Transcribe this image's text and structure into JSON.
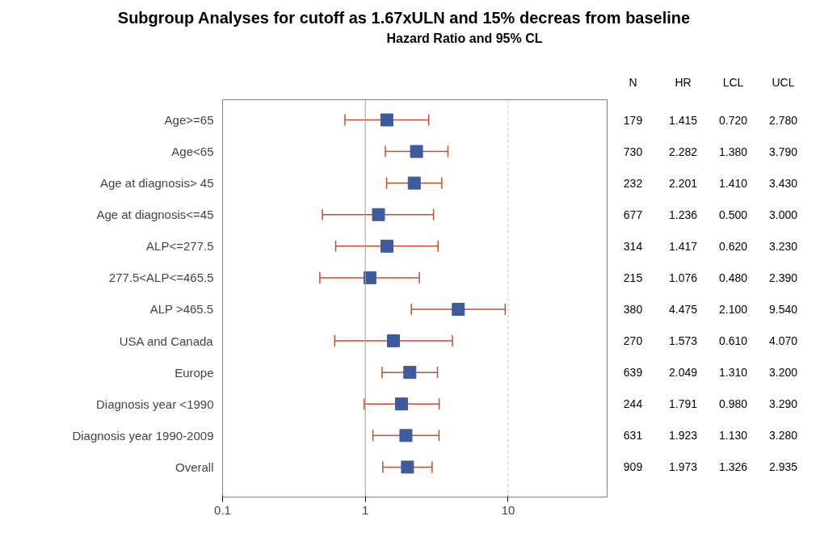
{
  "chart_data": {
    "type": "scatter",
    "title": "Subgroup Analyses for cutoff as 1.67xULN and 15% decreas from baseline",
    "subtitle": "Hazard Ratio and 95% CL",
    "orientation": "horizontal",
    "categories": [
      "Age>=65",
      "Age<65",
      "Age at diagnosis> 45",
      "Age at diagnosis<=45",
      "ALP<=277.5",
      "277.5<ALP<=465.5",
      "ALP >465.5",
      "USA and Canada",
      "Europe",
      "Diagnosis year <1990",
      "Diagnosis year 1990-2009",
      "Overall"
    ],
    "values": [
      1.415,
      2.282,
      2.201,
      1.236,
      1.417,
      1.076,
      4.475,
      1.573,
      2.049,
      1.791,
      1.923,
      1.973
    ],
    "errors": [
      [
        0.72,
        2.78
      ],
      [
        1.38,
        3.79
      ],
      [
        1.41,
        3.43
      ],
      [
        0.5,
        3.0
      ],
      [
        0.62,
        3.23
      ],
      [
        0.48,
        2.39
      ],
      [
        2.1,
        9.54
      ],
      [
        0.61,
        4.07
      ],
      [
        1.31,
        3.2
      ],
      [
        0.98,
        3.29
      ],
      [
        1.13,
        3.28
      ],
      [
        1.326,
        2.935
      ]
    ],
    "color": "#3f5a9c",
    "marker": "square",
    "log": "x",
    "xlim": [
      0.1,
      50
    ],
    "xticks": [
      0.1,
      1,
      10
    ],
    "grid": false,
    "ref_lines": [
      {
        "axis": "x",
        "value": 1,
        "color": "#a0a0a0",
        "line_style": "solid"
      },
      {
        "axis": "x",
        "value": 10,
        "color": "#c8c8c8",
        "line_style": "dashed"
      }
    ],
    "annotations": [
      "N",
      "HR",
      "LCL",
      "UCL",
      "179",
      "1.415",
      "0.720",
      "2.780",
      "730",
      "2.282",
      "1.380",
      "3.790",
      "232",
      "2.201",
      "1.410",
      "3.430",
      "677",
      "1.236",
      "0.500",
      "3.000",
      "314",
      "1.417",
      "0.620",
      "3.230",
      "215",
      "1.076",
      "0.480",
      "2.390",
      "380",
      "4.475",
      "2.100",
      "9.540",
      "270",
      "1.573",
      "0.610",
      "4.070",
      "639",
      "2.049",
      "1.310",
      "3.200",
      "244",
      "1.791",
      "0.980",
      "3.290",
      "631",
      "1.923",
      "1.130",
      "3.280",
      "909",
      "1.973",
      "1.326",
      "2.935"
    ]
  }
}
